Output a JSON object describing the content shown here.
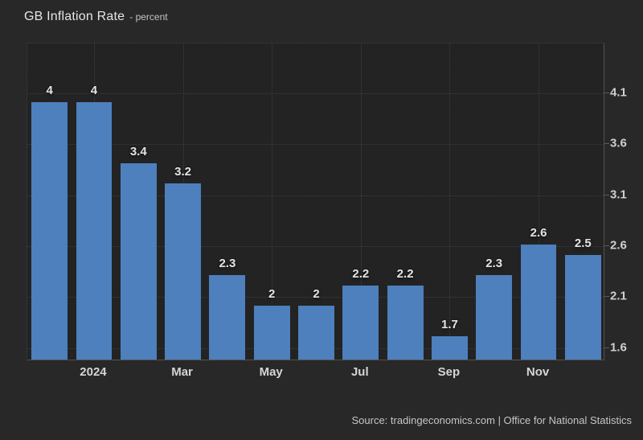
{
  "header": {
    "title": "GB Inflation Rate",
    "subtitle": "- percent"
  },
  "footer": {
    "source": "Source: tradingeconomics.com | Office for National Statistics"
  },
  "colors": {
    "background": "#282828",
    "plot_background": "#232323",
    "bar": "#4d80bd",
    "grid": "#3e3e3e",
    "axis_line": "#525252",
    "label_text": "#e3e3e3",
    "axis_text": "#cfcfcf"
  },
  "chart_data": {
    "type": "bar",
    "title": "GB Inflation Rate",
    "ylabel": "percent",
    "values": [
      4,
      4,
      3.4,
      3.2,
      2.3,
      2,
      2,
      2.2,
      2.2,
      1.7,
      2.3,
      2.6,
      2.5
    ],
    "bar_labels": [
      "4",
      "4",
      "3.4",
      "3.2",
      "2.3",
      "2",
      "2",
      "2.2",
      "2.2",
      "1.7",
      "2.3",
      "2.6",
      "2.5"
    ],
    "x_ticks": [
      {
        "slot": 1,
        "label": "2024"
      },
      {
        "slot": 3,
        "label": "Mar"
      },
      {
        "slot": 5,
        "label": "May"
      },
      {
        "slot": 7,
        "label": "Jul"
      },
      {
        "slot": 9,
        "label": "Sep"
      },
      {
        "slot": 11,
        "label": "Nov"
      }
    ],
    "y_ticks": [
      1.6,
      2.1,
      2.6,
      3.1,
      3.6,
      4.1
    ],
    "y_tick_labels": [
      "1.6",
      "2.1",
      "2.6",
      "3.1",
      "3.6",
      "4.1"
    ],
    "ylim": [
      1.47,
      4.59
    ],
    "grid": true,
    "legend": false,
    "yaxis_position": "right",
    "bar_width_ratio": 0.81
  }
}
